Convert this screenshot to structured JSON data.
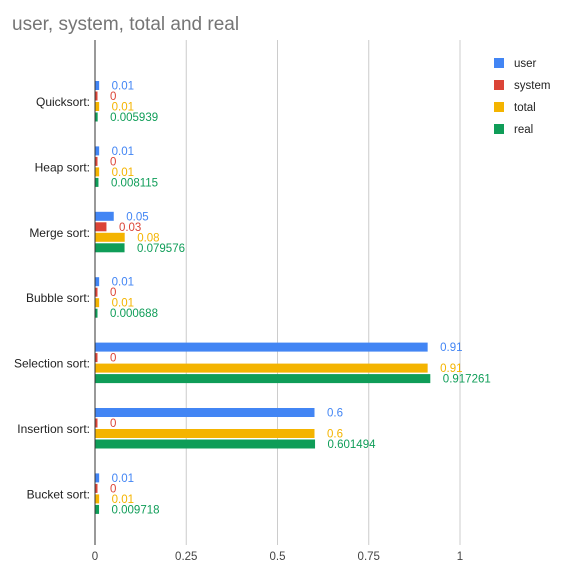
{
  "chart_data": {
    "type": "bar",
    "orientation": "horizontal",
    "title": "user, system, total and real",
    "xlabel": "",
    "ylabel": "",
    "categories": [
      "Quicksort:",
      "Heap sort:",
      "Merge sort:",
      "Bubble sort:",
      "Selection sort:",
      "Insertion sort:",
      "Bucket sort:"
    ],
    "series": [
      {
        "name": "user",
        "color": "#4285f4",
        "values": [
          0.01,
          0.01,
          0.05,
          0.01,
          0.91,
          0.6,
          0.01
        ],
        "labels": [
          "0.01",
          "0.01",
          "0.05",
          "0.01",
          "0.91",
          "0.6",
          "0.01"
        ]
      },
      {
        "name": "system",
        "color": "#db4437",
        "values": [
          0,
          0,
          0.03,
          0,
          0,
          0,
          0
        ],
        "labels": [
          "0",
          "0",
          "0.03",
          "0",
          "0",
          "0",
          "0"
        ]
      },
      {
        "name": "total",
        "color": "#f4b400",
        "values": [
          0.01,
          0.01,
          0.08,
          0.01,
          0.91,
          0.6,
          0.01
        ],
        "labels": [
          "0.01",
          "0.01",
          "0.08",
          "0.01",
          "0.91",
          "0.6",
          "0.01"
        ]
      },
      {
        "name": "real",
        "color": "#0f9d58",
        "values": [
          0.005939,
          0.008115,
          0.079576,
          0.000688,
          0.917261,
          0.601494,
          0.009718
        ],
        "labels": [
          "0.005939",
          "0.008115",
          "0.079576",
          "0.000688",
          "0.917261",
          "0.601494",
          "0.009718"
        ]
      }
    ],
    "xlim": [
      0,
      1
    ],
    "xticks": [
      0,
      0.25,
      0.5,
      0.75,
      1
    ],
    "xtick_labels": [
      "0",
      "0.25",
      "0.5",
      "0.75",
      "1"
    ],
    "grid": true,
    "legend_position": "right"
  }
}
